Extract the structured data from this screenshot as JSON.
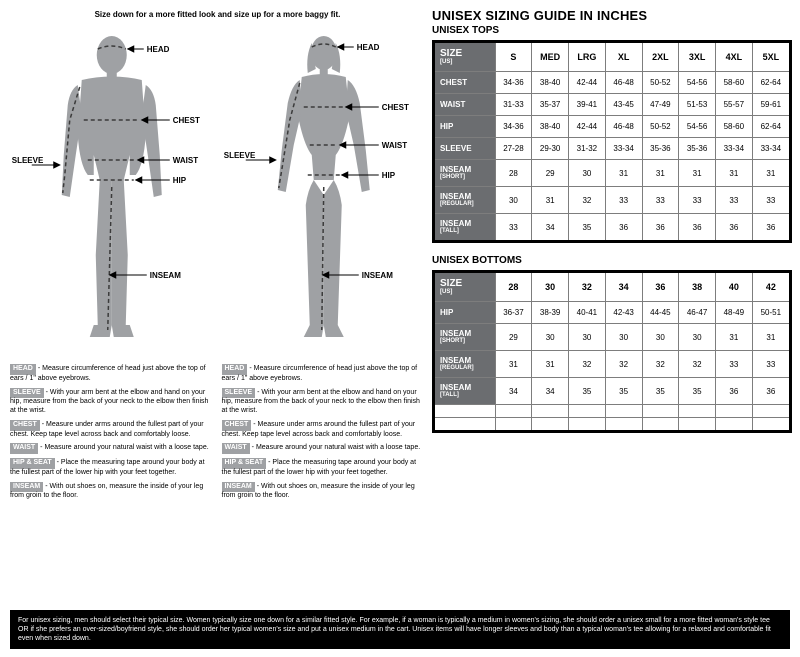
{
  "top_note": "Size down for a more fitted look and size up for a more baggy fit.",
  "guide_title": "UNISEX SIZING GUIDE IN INCHES",
  "sections": {
    "tops": "UNISEX TOPS",
    "bottoms": "UNISEX BOTTOMS"
  },
  "figure_labels": {
    "head": "HEAD",
    "chest": "CHEST",
    "waist": "WAIST",
    "hip": "HIP",
    "sleeve": "SLEEVE",
    "inseam": "INSEAM"
  },
  "defs": {
    "head": {
      "label": "HEAD",
      "text": "- Measure circumference of head just above the top of ears / 1\" above eyebrows."
    },
    "sleeve": {
      "label": "SLEEVE",
      "text": "- With your arm bent at the elbow and hand on your hip, measure from the back of your neck to the elbow then finish at the wrist."
    },
    "chest": {
      "label": "CHEST",
      "text": "- Measure under arms around the fullest part of your chest. Keep tape level across back and comfortably loose."
    },
    "waist": {
      "label": "WAIST",
      "text": "- Measure around your natural waist with a loose tape."
    },
    "hip": {
      "label": "HIP & SEAT",
      "text": "- Place the measuring tape around your body at the fullest part of the lower hip with your feet together."
    },
    "inseam": {
      "label": "INSEAM",
      "text": "- With out shoes on, measure the inside of your leg from groin to the floor."
    }
  },
  "tops": {
    "size_label": "SIZE",
    "size_sub": "[US]",
    "cols": [
      "S",
      "MED",
      "LRG",
      "XL",
      "2XL",
      "3XL",
      "4XL",
      "5XL"
    ],
    "rows": [
      {
        "label": "CHEST",
        "sub": "",
        "cells": [
          "34-36",
          "38-40",
          "42-44",
          "46-48",
          "50-52",
          "54-56",
          "58-60",
          "62-64"
        ]
      },
      {
        "label": "WAIST",
        "sub": "",
        "cells": [
          "31-33",
          "35-37",
          "39-41",
          "43-45",
          "47-49",
          "51-53",
          "55-57",
          "59-61"
        ]
      },
      {
        "label": "HIP",
        "sub": "",
        "cells": [
          "34-36",
          "38-40",
          "42-44",
          "46-48",
          "50-52",
          "54-56",
          "58-60",
          "62-64"
        ]
      },
      {
        "label": "SLEEVE",
        "sub": "",
        "cells": [
          "27-28",
          "29-30",
          "31-32",
          "33-34",
          "35-36",
          "35-36",
          "33-34",
          "33-34"
        ]
      },
      {
        "label": "INSEAM",
        "sub": "[SHORT]",
        "cells": [
          "28",
          "29",
          "30",
          "31",
          "31",
          "31",
          "31",
          "31"
        ]
      },
      {
        "label": "INSEAM",
        "sub": "[REGULAR]",
        "cells": [
          "30",
          "31",
          "32",
          "33",
          "33",
          "33",
          "33",
          "33"
        ]
      },
      {
        "label": "INSEAM",
        "sub": "[TALL]",
        "cells": [
          "33",
          "34",
          "35",
          "36",
          "36",
          "36",
          "36",
          "36"
        ]
      }
    ]
  },
  "bottoms": {
    "size_label": "SIZE",
    "size_sub": "[US]",
    "cols": [
      "28",
      "30",
      "32",
      "34",
      "36",
      "38",
      "40",
      "42"
    ],
    "rows": [
      {
        "label": "HIP",
        "sub": "",
        "cells": [
          "36-37",
          "38-39",
          "40-41",
          "42-43",
          "44-45",
          "46-47",
          "48-49",
          "50-51"
        ]
      },
      {
        "label": "INSEAM",
        "sub": "[SHORT]",
        "cells": [
          "29",
          "30",
          "30",
          "30",
          "30",
          "30",
          "31",
          "31"
        ]
      },
      {
        "label": "INSEAM",
        "sub": "[REGULAR]",
        "cells": [
          "31",
          "31",
          "32",
          "32",
          "32",
          "32",
          "33",
          "33"
        ]
      },
      {
        "label": "INSEAM",
        "sub": "[TALL]",
        "cells": [
          "34",
          "34",
          "35",
          "35",
          "35",
          "35",
          "36",
          "36"
        ]
      },
      {
        "label": "",
        "sub": "",
        "cells": [
          "",
          "",
          "",
          "",
          "",
          "",
          "",
          ""
        ]
      },
      {
        "label": "",
        "sub": "",
        "cells": [
          "",
          "",
          "",
          "",
          "",
          "",
          "",
          ""
        ]
      }
    ]
  },
  "disclaimer": "For unisex sizing, men should select their typical size. Women typically size one down for a similar fitted style. For example, if a woman is typically a medium in women's sizing, she should order a unisex small for a more fitted woman's style tee OR if she prefers an over-sized/boyfriend style, she should order her typical women's size and put a unisex medium in the cart. Unisex items will have longer sleeves and body than a typical woman's tee allowing for a relaxed and comfortable fit even when sized down.",
  "colors": {
    "silhouette": "#9fa1a4",
    "dash": "#3b3b3b",
    "rowhead_bg": "#6b6d70",
    "border": "#7d7d7d",
    "outer_border": "#000000"
  }
}
